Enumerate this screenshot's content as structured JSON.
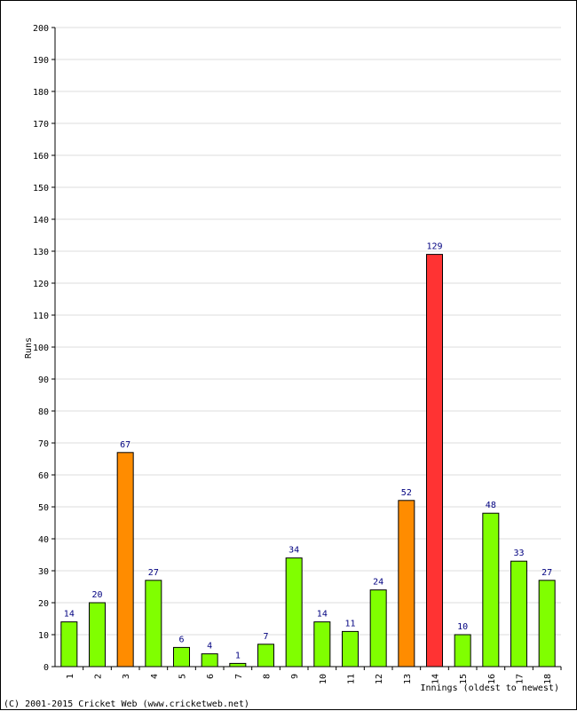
{
  "chart_data": {
    "type": "bar",
    "categories": [
      "1",
      "2",
      "3",
      "4",
      "5",
      "6",
      "7",
      "8",
      "9",
      "10",
      "11",
      "12",
      "13",
      "14",
      "15",
      "16",
      "17",
      "18"
    ],
    "values": [
      14,
      20,
      67,
      27,
      6,
      4,
      1,
      7,
      34,
      14,
      11,
      24,
      52,
      129,
      10,
      48,
      33,
      27
    ],
    "ylabel": "Runs",
    "xlabel": "Innings (oldest to newest)",
    "ylim": [
      0,
      200
    ],
    "ytick_step": 10,
    "grid": true,
    "colors": {
      "normal": "#80ff00",
      "fifty": "#ff8c00",
      "hundred": "#ff3333",
      "label": "#000080",
      "grid": "#dddddd"
    }
  },
  "footer": "(C) 2001-2015 Cricket Web (www.cricketweb.net)"
}
